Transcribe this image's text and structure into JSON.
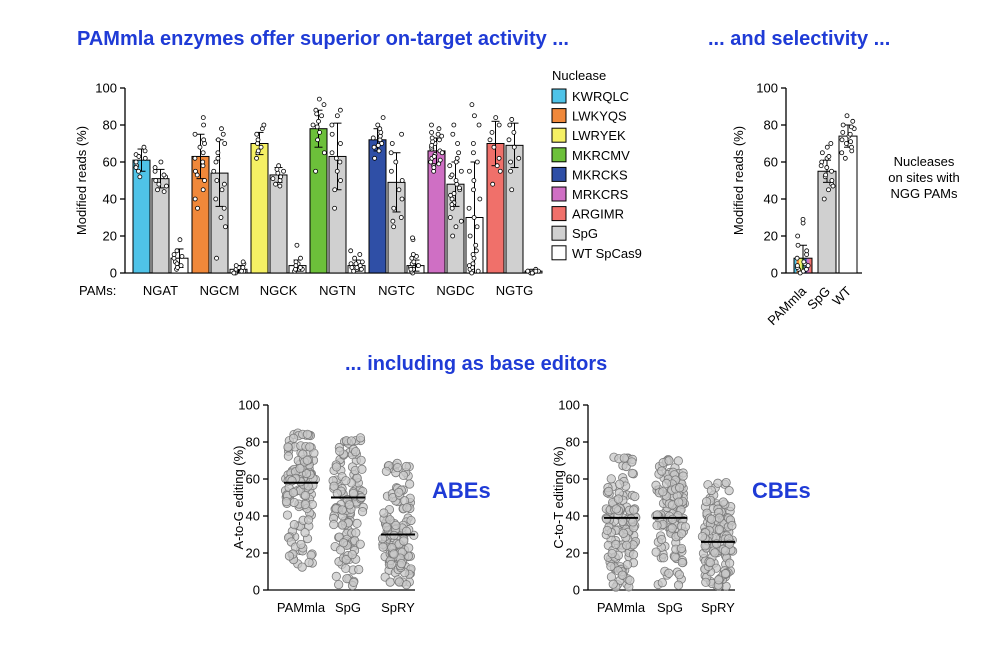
{
  "headings": {
    "top_left": "PAMmla enzymes offer superior on-target activity ...",
    "top_right": "... and selectivity ...",
    "bottom": "... including as base editors",
    "abe": "ABEs",
    "cbe": "CBEs",
    "note_lines": [
      "Nucleases",
      "on sites with",
      "NGG PAMs"
    ]
  },
  "colors": {
    "heading": "#1f3bd6",
    "KWRQLC": "#4fc3e8",
    "LWKYQS": "#f0883a",
    "LWRYEK": "#f5f064",
    "MKRCMV": "#6cc03a",
    "MKRCKS": "#2f4fa6",
    "MRKCRS": "#cf6fc4",
    "ARGIMR": "#f0706a",
    "SpG": "#d0d0d0",
    "WT SpCas9": "#ffffff"
  },
  "chart_data": [
    {
      "type": "bar",
      "ylabel": "Modified reads (%)",
      "ylim": [
        0,
        100
      ],
      "yticks": [
        0,
        20,
        40,
        60,
        80,
        100
      ],
      "x_prefix": "PAMs:",
      "legend_title": "Nuclease",
      "legend": [
        "KWRQLC",
        "LWKYQS",
        "LWRYEK",
        "MKRCMV",
        "MKRCKS",
        "MRKCRS",
        "ARGIMR",
        "SpG",
        "WT SpCas9"
      ],
      "groups": [
        {
          "pam": "NGAT",
          "bars": [
            {
              "nuclease": "KWRQLC",
              "mean": 61,
              "sd": 6,
              "points": [
                55,
                58,
                60,
                62,
                64,
                66,
                68,
                57,
                63,
                52
              ]
            },
            {
              "nuclease": "SpG",
              "mean": 51,
              "sd": 5,
              "points": [
                45,
                48,
                50,
                52,
                55,
                57,
                47,
                53,
                44,
                60
              ]
            },
            {
              "nuclease": "WT SpCas9",
              "mean": 8,
              "sd": 5,
              "points": [
                2,
                4,
                6,
                8,
                10,
                12,
                5,
                18,
                3,
                9
              ]
            }
          ]
        },
        {
          "pam": "NGCM",
          "bars": [
            {
              "nuclease": "LWKYQS",
              "mean": 63,
              "sd": 12,
              "points": [
                35,
                45,
                50,
                55,
                58,
                62,
                65,
                68,
                70,
                72,
                75,
                80,
                84,
                40,
                60,
                53
              ]
            },
            {
              "nuclease": "SpG",
              "mean": 54,
              "sd": 18,
              "points": [
                8,
                25,
                35,
                40,
                45,
                50,
                55,
                60,
                65,
                70,
                72,
                75,
                78,
                48,
                62,
                30
              ]
            },
            {
              "nuclease": "WT SpCas9",
              "mean": 2,
              "sd": 2,
              "points": [
                0,
                1,
                1,
                2,
                2,
                3,
                4,
                5,
                6,
                0,
                1,
                3
              ]
            }
          ]
        },
        {
          "pam": "NGCK",
          "bars": [
            {
              "nuclease": "LWRYEK",
              "mean": 70,
              "sd": 6,
              "points": [
                62,
                65,
                68,
                70,
                72,
                75,
                78,
                80,
                66
              ]
            },
            {
              "nuclease": "SpG",
              "mean": 53,
              "sd": 4,
              "points": [
                48,
                50,
                52,
                54,
                56,
                58,
                51,
                47,
                55
              ]
            },
            {
              "nuclease": "WT SpCas9",
              "mean": 4,
              "sd": 3,
              "points": [
                1,
                2,
                3,
                5,
                6,
                8,
                2,
                4,
                15
              ]
            }
          ]
        },
        {
          "pam": "NGTN",
          "bars": [
            {
              "nuclease": "MKRCMV",
              "mean": 78,
              "sd": 10,
              "points": [
                55,
                65,
                72,
                76,
                80,
                82,
                85,
                88,
                91,
                94,
                79,
                86
              ]
            },
            {
              "nuclease": "SpG",
              "mean": 63,
              "sd": 18,
              "points": [
                35,
                45,
                55,
                60,
                65,
                70,
                75,
                80,
                85,
                88,
                50,
                62
              ]
            },
            {
              "nuclease": "WT SpCas9",
              "mean": 4,
              "sd": 3,
              "points": [
                1,
                2,
                3,
                4,
                5,
                6,
                8,
                10,
                12,
                2,
                3,
                5
              ]
            }
          ]
        },
        {
          "pam": "NGTC",
          "bars": [
            {
              "nuclease": "MKRCKS",
              "mean": 72,
              "sd": 6,
              "points": [
                62,
                66,
                68,
                70,
                72,
                74,
                76,
                78,
                80,
                84,
                69,
                73
              ]
            },
            {
              "nuclease": "SpG",
              "mean": 49,
              "sd": 16,
              "points": [
                25,
                30,
                35,
                40,
                45,
                50,
                55,
                60,
                65,
                70,
                75,
                28
              ]
            },
            {
              "nuclease": "WT SpCas9",
              "mean": 4,
              "sd": 3,
              "points": [
                0,
                1,
                2,
                3,
                4,
                5,
                6,
                8,
                9,
                10,
                18,
                19,
                2,
                4
              ]
            }
          ]
        },
        {
          "pam": "NGDC",
          "bars": [
            {
              "nuclease": "MRKCRS",
              "mean": 66,
              "sd": 7,
              "points": [
                55,
                58,
                60,
                62,
                64,
                65,
                66,
                67,
                68,
                70,
                72,
                74,
                76,
                78,
                80,
                57,
                61,
                63,
                69,
                71,
                73,
                59,
                75,
                65
              ]
            },
            {
              "nuclease": "SpG",
              "mean": 48,
              "sd": 12,
              "points": [
                20,
                25,
                30,
                35,
                38,
                40,
                42,
                45,
                48,
                50,
                52,
                55,
                58,
                60,
                65,
                70,
                75,
                80,
                28,
                46,
                53,
                43,
                62,
                37
              ]
            },
            {
              "nuclease": "WT SpCas9",
              "mean": 30,
              "sd": 30,
              "points": [
                0,
                1,
                2,
                3,
                5,
                8,
                10,
                15,
                20,
                25,
                30,
                35,
                40,
                45,
                50,
                55,
                60,
                70,
                80,
                85,
                91,
                4,
                12,
                65
              ]
            }
          ]
        },
        {
          "pam": "NGTG",
          "bars": [
            {
              "nuclease": "ARGIMR",
              "mean": 70,
              "sd": 12,
              "points": [
                48,
                55,
                62,
                68,
                72,
                76,
                80,
                84,
                58
              ]
            },
            {
              "nuclease": "SpG",
              "mean": 69,
              "sd": 12,
              "points": [
                45,
                55,
                62,
                68,
                72,
                76,
                80,
                83,
                60
              ]
            },
            {
              "nuclease": "WT SpCas9",
              "mean": 1,
              "sd": 1,
              "points": [
                0,
                0,
                1,
                1,
                1,
                2,
                0,
                1,
                1
              ]
            }
          ]
        }
      ]
    },
    {
      "type": "bar",
      "ylabel": "Modified reads (%)",
      "ylim": [
        0,
        100
      ],
      "yticks": [
        0,
        20,
        40,
        60,
        80,
        100
      ],
      "categories": [
        "PAMmla",
        "SpG",
        "WT"
      ],
      "bars": [
        {
          "label": "PAMmla",
          "mean": 8,
          "sd": 7,
          "points": [
            0,
            1,
            2,
            3,
            4,
            5,
            6,
            8,
            10,
            12,
            15,
            20,
            27,
            29,
            2,
            4
          ]
        },
        {
          "label": "SpG",
          "mean": 55,
          "sd": 6,
          "points": [
            40,
            45,
            48,
            50,
            52,
            55,
            57,
            60,
            62,
            65,
            68,
            70,
            47,
            53,
            58,
            63
          ]
        },
        {
          "label": "WT",
          "mean": 74,
          "sd": 6,
          "points": [
            62,
            66,
            68,
            70,
            72,
            74,
            76,
            78,
            80,
            82,
            85,
            71,
            75,
            79,
            65
          ]
        }
      ]
    },
    {
      "type": "scatter",
      "ylabel": "A-to-G editing (%)",
      "ylim": [
        0,
        100
      ],
      "yticks": [
        0,
        20,
        40,
        60,
        80,
        100
      ],
      "categories": [
        "PAMmla",
        "SpG",
        "SpRY"
      ],
      "medians": [
        58,
        50,
        30
      ],
      "ranges": [
        [
          10,
          92
        ],
        [
          2,
          91
        ],
        [
          2,
          79
        ]
      ]
    },
    {
      "type": "scatter",
      "ylabel": "C-to-T editing (%)",
      "ylim": [
        0,
        100
      ],
      "yticks": [
        0,
        20,
        40,
        60,
        80,
        100
      ],
      "categories": [
        "PAMmla",
        "SpG",
        "SpRY"
      ],
      "medians": [
        39,
        39,
        26
      ],
      "ranges": [
        [
          1,
          80
        ],
        [
          1,
          79
        ],
        [
          1,
          68
        ]
      ]
    }
  ]
}
